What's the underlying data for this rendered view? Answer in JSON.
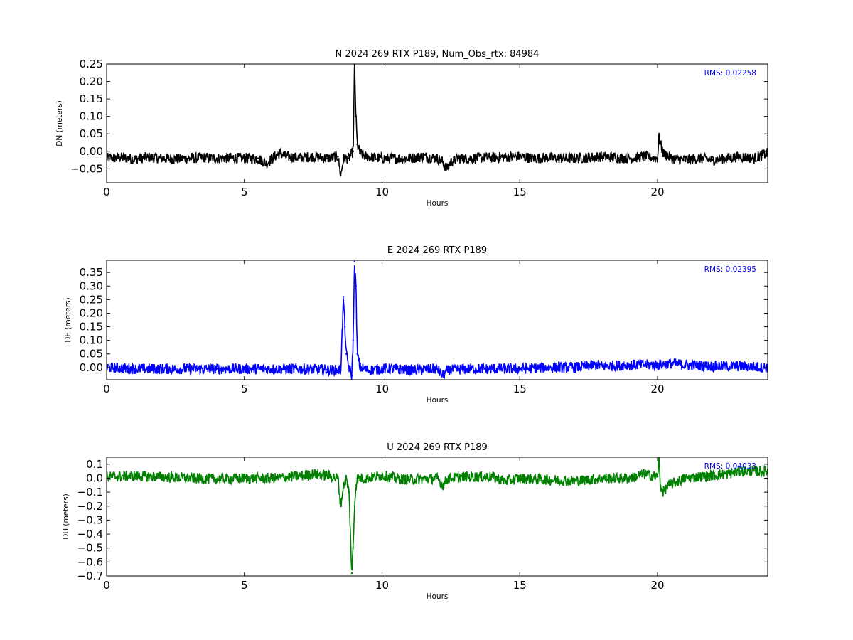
{
  "chart_data": [
    {
      "type": "line",
      "title": "N 2024 269 RTX  P189, Num_Obs_rtx: 84984",
      "xlabel": "Hours",
      "ylabel": "DN (meters)",
      "xlim": [
        0,
        24
      ],
      "ylim": [
        -0.09,
        0.25
      ],
      "xticks": [
        0,
        5,
        10,
        15,
        20
      ],
      "yticks": [
        -0.05,
        0.0,
        0.05,
        0.1,
        0.15,
        0.2,
        0.25
      ],
      "ytick_labels": [
        "−0.05",
        "0.00",
        "0.05",
        "0.10",
        "0.15",
        "0.20",
        "0.25"
      ],
      "xtick_labels": [
        "0",
        "5",
        "10",
        "15",
        "20"
      ],
      "grid": false,
      "annotation": "RMS:  0.02258",
      "color": "#000000",
      "series": [
        {
          "x": [
            0,
            0.5,
            1,
            1.5,
            2,
            2.5,
            3,
            3.5,
            4,
            4.5,
            5,
            5.5,
            5.8,
            6,
            6.3,
            6.5,
            7,
            7.5,
            8,
            8.4,
            8.5,
            8.6,
            8.8,
            8.95,
            9.0,
            9.05,
            9.1,
            9.2,
            9.4,
            10,
            10.5,
            11,
            11.5,
            12,
            12.2,
            12.35,
            12.5,
            12.8,
            13,
            14,
            15,
            15.5,
            16,
            16.5,
            17,
            18,
            19,
            19.5,
            20,
            20.05,
            20.2,
            20.5,
            21,
            21.5,
            22,
            22.5,
            23,
            23.5,
            24
          ],
          "y": [
            -0.02,
            -0.018,
            -0.022,
            -0.017,
            -0.02,
            -0.022,
            -0.02,
            -0.018,
            -0.02,
            -0.019,
            -0.02,
            -0.02,
            -0.035,
            -0.02,
            -0.005,
            -0.015,
            -0.018,
            -0.015,
            -0.02,
            -0.015,
            -0.07,
            -0.02,
            -0.02,
            0.0,
            0.25,
            0.1,
            0.02,
            -0.005,
            -0.015,
            -0.02,
            -0.02,
            -0.02,
            -0.015,
            -0.02,
            -0.03,
            -0.05,
            -0.03,
            -0.02,
            -0.02,
            -0.018,
            -0.015,
            -0.02,
            -0.018,
            -0.02,
            -0.02,
            -0.015,
            -0.02,
            -0.015,
            -0.02,
            0.04,
            -0.005,
            -0.02,
            -0.025,
            -0.02,
            -0.025,
            -0.02,
            -0.015,
            -0.02,
            -0.005
          ]
        }
      ]
    },
    {
      "type": "line",
      "title": "E 2024 269 RTX  P189",
      "xlabel": "Hours",
      "ylabel": "DE (meters)",
      "xlim": [
        0,
        24
      ],
      "ylim": [
        -0.045,
        0.395
      ],
      "xticks": [
        0,
        5,
        10,
        15,
        20
      ],
      "yticks": [
        0.0,
        0.05,
        0.1,
        0.15,
        0.2,
        0.25,
        0.3,
        0.35
      ],
      "ytick_labels": [
        "0.00",
        "0.05",
        "0.10",
        "0.15",
        "0.20",
        "0.25",
        "0.30",
        "0.35"
      ],
      "xtick_labels": [
        "0",
        "5",
        "10",
        "15",
        "20"
      ],
      "grid": false,
      "annotation": "RMS:  0.02395",
      "color": "#0000ff",
      "series": [
        {
          "x": [
            0,
            1,
            2,
            3,
            4,
            5,
            6,
            7,
            8,
            8.5,
            8.6,
            8.65,
            8.7,
            8.8,
            8.9,
            8.95,
            9.0,
            9.05,
            9.1,
            9.2,
            9.5,
            10,
            10.5,
            11,
            12,
            12.2,
            12.4,
            13,
            14,
            15,
            16,
            17,
            17.8,
            18,
            19,
            20,
            20.5,
            21,
            22,
            23,
            24
          ],
          "y": [
            0.0,
            -0.005,
            -0.005,
            -0.005,
            -0.005,
            -0.005,
            -0.005,
            -0.005,
            -0.008,
            -0.01,
            0.26,
            0.15,
            0.05,
            0.0,
            -0.03,
            0.1,
            0.39,
            0.3,
            0.05,
            0.0,
            -0.01,
            -0.005,
            -0.005,
            -0.01,
            -0.005,
            -0.03,
            -0.01,
            -0.005,
            -0.005,
            -0.005,
            0.0,
            0.0,
            0.01,
            0.005,
            0.01,
            0.01,
            0.015,
            0.01,
            0.005,
            0.005,
            0.0
          ]
        }
      ]
    },
    {
      "type": "line",
      "title": "U 2024 269 RTX  P189",
      "xlabel": "Hours",
      "ylabel": "DU (meters)",
      "xlim": [
        0,
        24
      ],
      "ylim": [
        -0.7,
        0.15
      ],
      "xticks": [
        0,
        5,
        10,
        15,
        20
      ],
      "yticks": [
        -0.7,
        -0.6,
        -0.5,
        -0.4,
        -0.3,
        -0.2,
        -0.1,
        0.0,
        0.1
      ],
      "ytick_labels": [
        "−0.7",
        "−0.6",
        "−0.5",
        "−0.4",
        "−0.3",
        "−0.2",
        "−0.1",
        "0.0",
        "0.1"
      ],
      "xtick_labels": [
        "0",
        "5",
        "10",
        "15",
        "20"
      ],
      "grid": false,
      "annotation": "RMS:  0.04033",
      "color": "#008000",
      "series": [
        {
          "x": [
            0,
            1,
            2,
            3,
            4,
            5,
            6,
            7,
            7.5,
            8,
            8.4,
            8.5,
            8.6,
            8.7,
            8.8,
            8.9,
            8.95,
            9.0,
            9.05,
            9.1,
            9.2,
            9.5,
            10,
            10.5,
            11,
            12,
            12.2,
            12.4,
            13,
            14,
            14.5,
            15,
            16,
            17,
            18,
            19,
            19.5,
            20,
            20.05,
            20.1,
            20.2,
            20.4,
            21,
            22,
            22.5,
            23,
            24
          ],
          "y": [
            0.01,
            0.015,
            0.01,
            0.0,
            -0.005,
            0.0,
            0.0,
            0.015,
            0.03,
            0.02,
            0.0,
            -0.2,
            -0.05,
            0.0,
            -0.1,
            -0.68,
            -0.5,
            -0.2,
            -0.05,
            0.0,
            0.0,
            0.0,
            0.02,
            0.0,
            -0.01,
            0.0,
            -0.05,
            0.0,
            0.01,
            0.01,
            -0.02,
            0.0,
            -0.01,
            -0.02,
            0.0,
            0.0,
            0.03,
            0.01,
            0.14,
            -0.05,
            -0.1,
            -0.05,
            0.0,
            0.02,
            0.03,
            0.05,
            0.05
          ]
        }
      ]
    }
  ]
}
